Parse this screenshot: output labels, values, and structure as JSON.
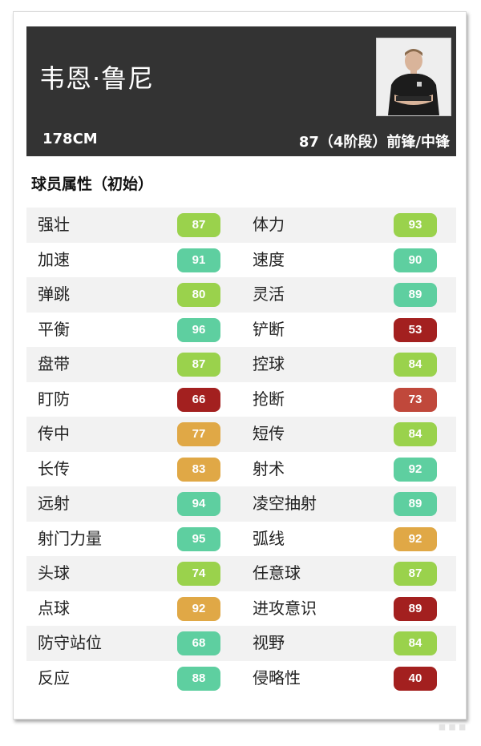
{
  "header": {
    "player_name": "韦恩·鲁尼",
    "height": "178CM",
    "rating_position": "87（4阶段）前锋/中锋"
  },
  "section_title": "球员属性（初始）",
  "colors": {
    "green_light": "#9ad24c",
    "teal": "#5ecfa0",
    "orange": "#e0a846",
    "red_dark": "#a3201f",
    "red_mid": "#c0483b"
  },
  "attributes": [
    {
      "left": {
        "name": "强壮",
        "value": "87",
        "color": "#9ad24c"
      },
      "right": {
        "name": "体力",
        "value": "93",
        "color": "#9ad24c"
      }
    },
    {
      "left": {
        "name": "加速",
        "value": "91",
        "color": "#5ecfa0"
      },
      "right": {
        "name": "速度",
        "value": "90",
        "color": "#5ecfa0"
      }
    },
    {
      "left": {
        "name": "弹跳",
        "value": "80",
        "color": "#9ad24c"
      },
      "right": {
        "name": "灵活",
        "value": "89",
        "color": "#5ecfa0"
      }
    },
    {
      "left": {
        "name": "平衡",
        "value": "96",
        "color": "#5ecfa0"
      },
      "right": {
        "name": "铲断",
        "value": "53",
        "color": "#a3201f"
      }
    },
    {
      "left": {
        "name": "盘带",
        "value": "87",
        "color": "#9ad24c"
      },
      "right": {
        "name": "控球",
        "value": "84",
        "color": "#9ad24c"
      }
    },
    {
      "left": {
        "name": "盯防",
        "value": "66",
        "color": "#a3201f"
      },
      "right": {
        "name": "抢断",
        "value": "73",
        "color": "#c0483b"
      }
    },
    {
      "left": {
        "name": "传中",
        "value": "77",
        "color": "#e0a846"
      },
      "right": {
        "name": "短传",
        "value": "84",
        "color": "#9ad24c"
      }
    },
    {
      "left": {
        "name": "长传",
        "value": "83",
        "color": "#e0a846"
      },
      "right": {
        "name": "射术",
        "value": "92",
        "color": "#5ecfa0"
      }
    },
    {
      "left": {
        "name": "远射",
        "value": "94",
        "color": "#5ecfa0"
      },
      "right": {
        "name": "凌空抽射",
        "value": "89",
        "color": "#5ecfa0"
      }
    },
    {
      "left": {
        "name": "射门力量",
        "value": "95",
        "color": "#5ecfa0"
      },
      "right": {
        "name": "弧线",
        "value": "92",
        "color": "#e0a846"
      }
    },
    {
      "left": {
        "name": "头球",
        "value": "74",
        "color": "#9ad24c"
      },
      "right": {
        "name": "任意球",
        "value": "87",
        "color": "#9ad24c"
      }
    },
    {
      "left": {
        "name": "点球",
        "value": "92",
        "color": "#e0a846"
      },
      "right": {
        "name": "进攻意识",
        "value": "89",
        "color": "#a3201f"
      }
    },
    {
      "left": {
        "name": "防守站位",
        "value": "68",
        "color": "#5ecfa0"
      },
      "right": {
        "name": "视野",
        "value": "84",
        "color": "#9ad24c"
      }
    },
    {
      "left": {
        "name": "反应",
        "value": "88",
        "color": "#5ecfa0"
      },
      "right": {
        "name": "侵略性",
        "value": "40",
        "color": "#a3201f"
      }
    }
  ]
}
